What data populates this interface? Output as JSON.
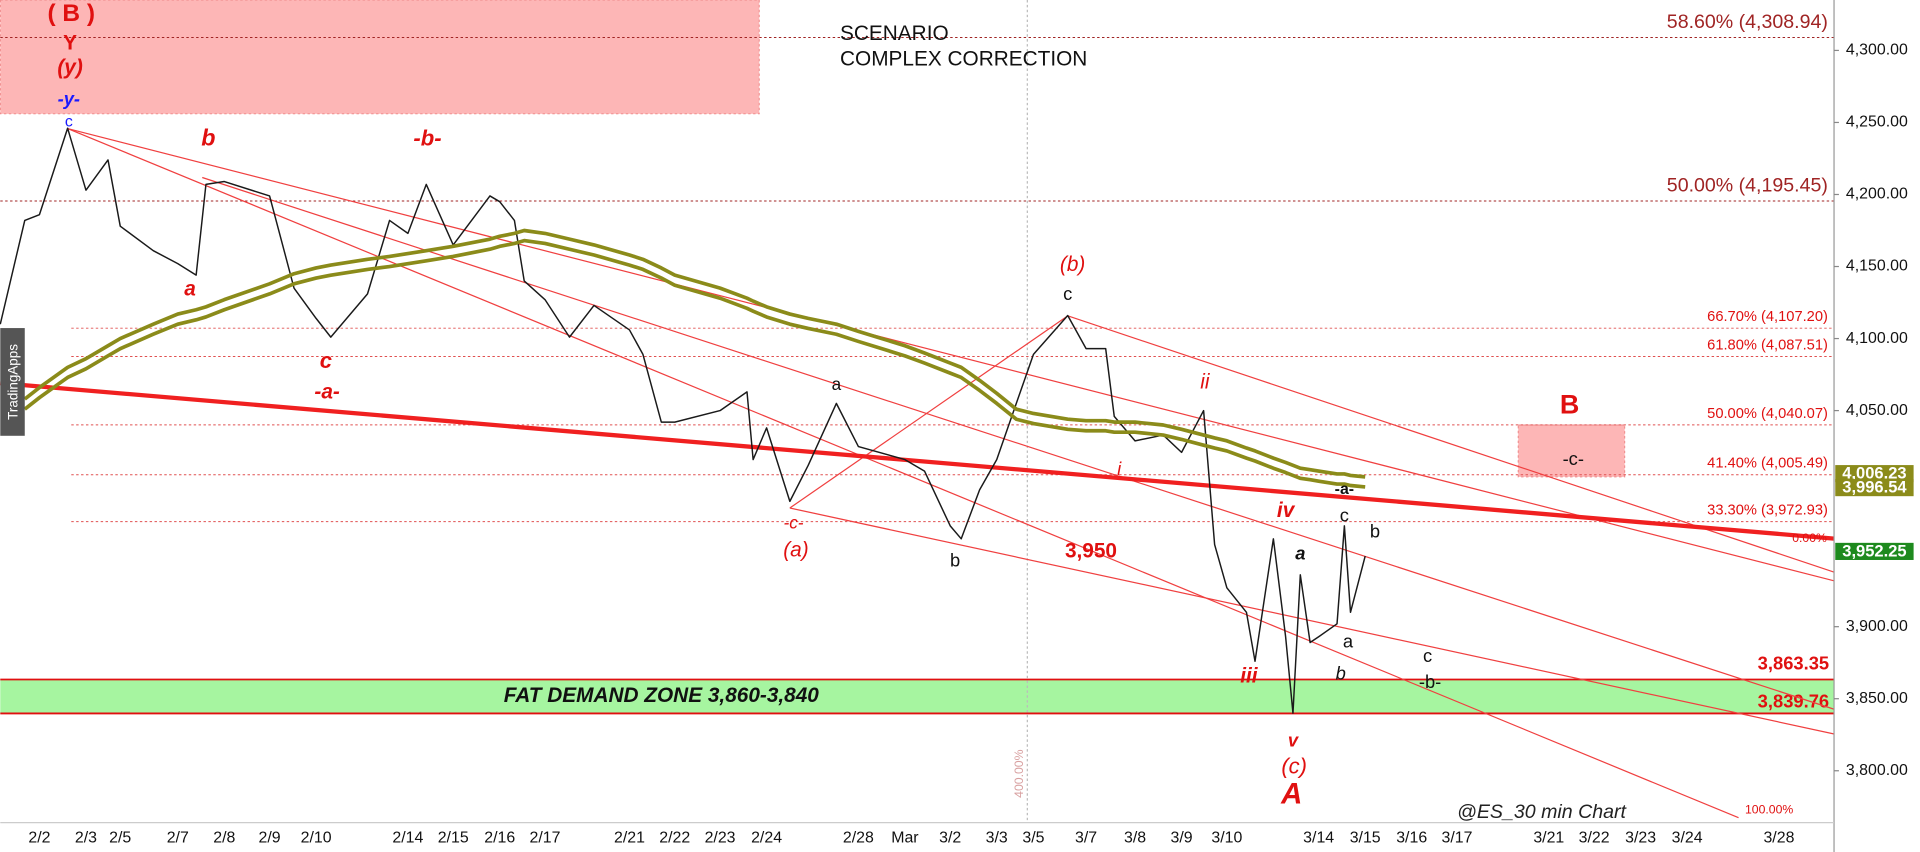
{
  "chart_data": {
    "type": "line",
    "title": "SCENARIO",
    "subtitle": "COMPLEX CORRECTION",
    "footer": "@ES_30 min Chart",
    "sidebar_label": "TradingApps",
    "categories": [
      null,
      null,
      "2/2",
      null,
      "2/3",
      null,
      "2/5",
      null,
      "2/7",
      null,
      null,
      "2/8",
      "2/9",
      null,
      "2/10",
      null,
      null,
      null,
      "2/14",
      null,
      "2/15",
      null,
      "2/16",
      null,
      null,
      "2/17",
      null,
      null,
      "2/21",
      null,
      null,
      "2/22",
      "2/23",
      null,
      null,
      "2/24",
      null,
      null,
      null,
      "2/28",
      "Mar",
      null,
      "3/2",
      null,
      null,
      "3/3",
      null,
      "3/5",
      null,
      "3/7",
      null,
      null,
      "3/8",
      null,
      "3/9",
      null,
      null,
      "3/10",
      null,
      null,
      null,
      null,
      null,
      null,
      null,
      "3/14",
      null,
      null,
      null,
      "3/15",
      "3/16",
      "3/17",
      "3/21",
      "3/22",
      "3/23",
      "3/24",
      "3/28"
    ],
    "series": [
      {
        "color": "#1a1a1a",
        "values": [
          4110,
          4182,
          4186,
          4246,
          4203,
          4224,
          4178,
          4161,
          4152,
          4144,
          4207,
          4209,
          4199,
          4135,
          4114,
          4101,
          4131,
          4182,
          4173,
          4207,
          4165,
          4199,
          4195,
          4182,
          4140,
          4127,
          4101,
          4123,
          4106,
          4089,
          4042,
          4042,
          4050,
          4063,
          4016,
          4038,
          3987,
          4012,
          4055,
          4025,
          4016,
          4008,
          3970,
          3961,
          3995,
          4016,
          4055,
          4089,
          4116,
          4093,
          4093,
          4046,
          4029,
          4033,
          4021,
          4050,
          3957,
          3927,
          3910,
          3876,
          3961,
          3893,
          3840,
          3936,
          3889,
          3893,
          3902,
          3970,
          3910,
          3949,
          null,
          null,
          null,
          null,
          null,
          null,
          null
        ]
      },
      {
        "color": "#8b8b1a",
        "values": [
          null,
          4058,
          4066,
          4080,
          4086,
          4095,
          4100,
          4110,
          4117,
          4120,
          4122,
          4127,
          4138,
          4145,
          4149,
          4151,
          4155,
          4157,
          4159,
          4161,
          4164,
          4169,
          4171,
          4173,
          4175,
          4173,
          4169,
          4165,
          4158,
          4155,
          4149,
          4144,
          4135,
          4128,
          4126,
          4122,
          4117,
          4114,
          4110,
          4105,
          4095,
          4090,
          4083,
          4080,
          4071,
          4062,
          4051,
          4048,
          4044,
          4043,
          4043,
          4042,
          4042,
          4040,
          4037,
          4033,
          4031,
          4029,
          4024,
          4022,
          4017,
          4014,
          4012,
          4010,
          4009,
          4008,
          4006,
          4006,
          4005,
          4004,
          null,
          null,
          null,
          null,
          null,
          null,
          null
        ]
      },
      {
        "color": "#8b8b1a",
        "values": [
          null,
          4051,
          4059,
          4073,
          4079,
          4088,
          4093,
          4103,
          4110,
          4113,
          4115,
          4120,
          4131,
          4138,
          4142,
          4144,
          4148,
          4150,
          4152,
          4154,
          4157,
          4162,
          4164,
          4166,
          4168,
          4166,
          4162,
          4158,
          4151,
          4148,
          4142,
          4137,
          4128,
          4121,
          4119,
          4115,
          4110,
          4107,
          4103,
          4098,
          4088,
          4083,
          4076,
          4073,
          4064,
          4055,
          4044,
          4041,
          4037,
          4036,
          4036,
          4035,
          4035,
          4033,
          4030,
          4026,
          4024,
          4022,
          4017,
          4015,
          4010,
          4007,
          4005,
          4003,
          4002,
          4001,
          3999,
          3999,
          3998,
          3997,
          null,
          null,
          null,
          null,
          null,
          null,
          null
        ]
      }
    ],
    "ylim": [
      3764,
      4335
    ],
    "yticks": [
      {
        "value": 4300,
        "label": "4,300.00"
      },
      {
        "value": 4250,
        "label": "4,250.00"
      },
      {
        "value": 4200,
        "label": "4,200.00"
      },
      {
        "value": 4150,
        "label": "4,150.00"
      },
      {
        "value": 4100,
        "label": "4,100.00"
      },
      {
        "value": 4050,
        "label": "4,050.00"
      },
      {
        "value": 3900,
        "label": "3,900.00"
      },
      {
        "value": 3850,
        "label": "3,850.00"
      },
      {
        "value": 3800,
        "label": "3,800.00"
      }
    ],
    "fib_levels": [
      {
        "label": "58.60% (4,308.94)",
        "value": 4308.94,
        "color": "#a02424"
      },
      {
        "label": "50.00% (4,195.45)",
        "value": 4195.45,
        "color": "#a02424"
      },
      {
        "label": "66.70% (4,107.20)",
        "value": 4107.2,
        "color": "#e01010"
      },
      {
        "label": "61.80% (4,087.51)",
        "value": 4087.51,
        "color": "#e01010"
      },
      {
        "label": "50.00% (4,040.07)",
        "value": 4040.07,
        "color": "#e01010"
      },
      {
        "label": "41.40% (4,005.49)",
        "value": 4005.49,
        "color": "#e01010"
      },
      {
        "label": "33.30% (3,972.93)",
        "value": 3972.93,
        "color": "#e01010"
      }
    ],
    "price_tags": [
      {
        "label": "4,006.23",
        "value": 4006.23,
        "color": "#8b8b1a"
      },
      {
        "label": "3,996.54",
        "value": 3996.54,
        "color": "#8b8b1a"
      },
      {
        "label": "3,952.25",
        "value": 3952.25,
        "color": "#1e8a1e"
      }
    ],
    "price_levels": [
      {
        "label": "3,863.35",
        "value": 3863.35,
        "color": "#e01010"
      },
      {
        "label": "3,839.76",
        "value": 3839.76,
        "color": "#e01010"
      }
    ],
    "zones": [
      {
        "from": 4256,
        "to": 4335,
        "color": "#fdb6b6"
      },
      {
        "from": 4004,
        "to": 4040,
        "color": "#fdb6b6"
      },
      {
        "label": "FAT DEMAND ZONE 3,860-3,840",
        "from": 3839.76,
        "to": 3863.35,
        "color": "#a6f5a0"
      }
    ],
    "annotations": [
      {
        "text": "( B )",
        "color": "#e01010"
      },
      {
        "text": "Y",
        "color": "#e01010"
      },
      {
        "text": "(y)",
        "color": "#e01010"
      },
      {
        "text": "-y-",
        "color": "#1a1aff"
      },
      {
        "text": "c",
        "color": "#1a1aff"
      },
      {
        "text": "b",
        "color": "#e01010"
      },
      {
        "text": "a",
        "color": "#e01010"
      },
      {
        "text": "c",
        "color": "#e01010"
      },
      {
        "text": "-a-",
        "color": "#e01010"
      },
      {
        "text": "-b-",
        "color": "#e01010"
      },
      {
        "text": "-c-",
        "color": "#e01010"
      },
      {
        "text": "(a)",
        "color": "#e01010"
      },
      {
        "text": "a",
        "color": "#111"
      },
      {
        "text": "b",
        "color": "#111"
      },
      {
        "text": "(b)",
        "color": "#e01010"
      },
      {
        "text": "c",
        "color": "#111"
      },
      {
        "text": "3,950",
        "color": "#e01010"
      },
      {
        "text": "ii",
        "color": "#e01010"
      },
      {
        "text": "i",
        "color": "#e01010"
      },
      {
        "text": "iv",
        "color": "#e01010"
      },
      {
        "text": "iii",
        "color": "#e01010"
      },
      {
        "text": "a",
        "color": "#111"
      },
      {
        "text": "v",
        "color": "#e01010"
      },
      {
        "text": "(c)",
        "color": "#e01010"
      },
      {
        "text": "A",
        "color": "#e01010"
      },
      {
        "text": "c",
        "color": "#111"
      },
      {
        "text": "b",
        "color": "#111"
      },
      {
        "text": "-a-",
        "color": "#111"
      },
      {
        "text": "a",
        "color": "#111"
      },
      {
        "text": "b",
        "color": "#111"
      },
      {
        "text": "c",
        "color": "#111"
      },
      {
        "text": "-b-",
        "color": "#111"
      },
      {
        "text": "B",
        "color": "#e01010"
      },
      {
        "text": "-c-",
        "color": "#111"
      },
      {
        "text": "400.00%",
        "color": "#d8a0a0"
      },
      {
        "text": "100.00%",
        "color": "#e01010"
      },
      {
        "text": "0.00%",
        "color": "#e01010"
      }
    ]
  }
}
